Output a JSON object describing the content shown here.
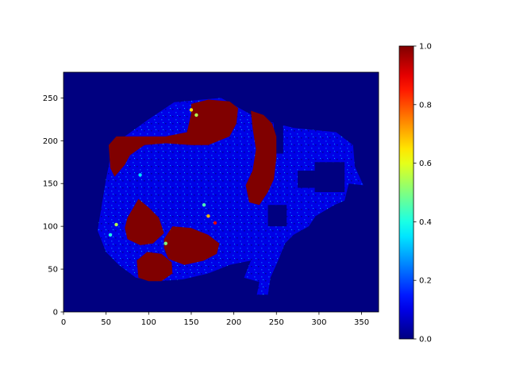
{
  "chart_data": {
    "type": "heatmap",
    "title": "",
    "xlabel": "",
    "ylabel": "",
    "xlim": [
      0,
      370
    ],
    "ylim": [
      0,
      280
    ],
    "x_ticks": [
      "0",
      "50",
      "100",
      "150",
      "200",
      "250",
      "300",
      "350"
    ],
    "y_ticks": [
      "0",
      "50",
      "100",
      "150",
      "200",
      "250"
    ],
    "colorbar": {
      "colormap": "jet",
      "range": [
        0.0,
        1.0
      ],
      "ticks": [
        "0.0",
        "0.2",
        "0.4",
        "0.6",
        "0.8",
        "1.0"
      ]
    },
    "background_value": 0.0,
    "tissue_base_value": 0.1,
    "tissue_region": [
      [
        40,
        95
      ],
      [
        50,
        155
      ],
      [
        58,
        195
      ],
      [
        100,
        225
      ],
      [
        130,
        245
      ],
      [
        185,
        250
      ],
      [
        230,
        225
      ],
      [
        270,
        215
      ],
      [
        320,
        210
      ],
      [
        340,
        195
      ],
      [
        342,
        170
      ],
      [
        352,
        148
      ],
      [
        335,
        150
      ],
      [
        330,
        130
      ],
      [
        318,
        125
      ],
      [
        296,
        112
      ],
      [
        288,
        100
      ],
      [
        270,
        90
      ],
      [
        260,
        80
      ],
      [
        252,
        60
      ],
      [
        243,
        40
      ],
      [
        240,
        20
      ],
      [
        227,
        20
      ],
      [
        230,
        35
      ],
      [
        212,
        40
      ],
      [
        220,
        60
      ],
      [
        195,
        55
      ],
      [
        170,
        45
      ],
      [
        140,
        38
      ],
      [
        110,
        36
      ],
      [
        85,
        40
      ],
      [
        65,
        55
      ],
      [
        50,
        70
      ]
    ],
    "high_regions": [
      {
        "value": 1.0,
        "polygon": [
          [
            53,
            195
          ],
          [
            62,
            205
          ],
          [
            95,
            205
          ],
          [
            120,
            205
          ],
          [
            145,
            210
          ],
          [
            150,
            232
          ],
          [
            150,
            243
          ],
          [
            170,
            248
          ],
          [
            195,
            246
          ],
          [
            205,
            238
          ],
          [
            203,
            220
          ],
          [
            195,
            205
          ],
          [
            170,
            195
          ],
          [
            150,
            195
          ],
          [
            120,
            197
          ],
          [
            95,
            195
          ],
          [
            78,
            183
          ],
          [
            72,
            172
          ],
          [
            60,
            158
          ],
          [
            55,
            168
          ]
        ]
      },
      {
        "value": 1.0,
        "polygon": [
          [
            220,
            235
          ],
          [
            235,
            230
          ],
          [
            245,
            220
          ],
          [
            250,
            205
          ],
          [
            250,
            180
          ],
          [
            247,
            155
          ],
          [
            240,
            140
          ],
          [
            230,
            125
          ],
          [
            218,
            128
          ],
          [
            214,
            148
          ],
          [
            222,
            165
          ],
          [
            226,
            190
          ],
          [
            222,
            215
          ]
        ]
      },
      {
        "value": 1.0,
        "polygon": [
          [
            75,
            110
          ],
          [
            88,
            132
          ],
          [
            100,
            122
          ],
          [
            112,
            110
          ],
          [
            118,
            92
          ],
          [
            105,
            80
          ],
          [
            90,
            78
          ],
          [
            75,
            85
          ],
          [
            72,
            98
          ]
        ]
      },
      {
        "value": 1.0,
        "polygon": [
          [
            118,
            85
          ],
          [
            128,
            100
          ],
          [
            150,
            98
          ],
          [
            170,
            90
          ],
          [
            183,
            80
          ],
          [
            180,
            68
          ],
          [
            165,
            60
          ],
          [
            142,
            55
          ],
          [
            123,
            62
          ],
          [
            118,
            75
          ]
        ]
      },
      {
        "value": 1.0,
        "polygon": [
          [
            88,
            40
          ],
          [
            86,
            60
          ],
          [
            98,
            70
          ],
          [
            115,
            68
          ],
          [
            127,
            58
          ],
          [
            128,
            45
          ],
          [
            115,
            36
          ],
          [
            100,
            36
          ]
        ]
      }
    ],
    "masked_blocks": [
      {
        "x": [
          275,
          295
        ],
        "y": [
          145,
          165
        ]
      },
      {
        "x": [
          295,
          330
        ],
        "y": [
          140,
          175
        ]
      },
      {
        "x": [
          247,
          258
        ],
        "y": [
          185,
          245
        ]
      },
      {
        "x": [
          240,
          262
        ],
        "y": [
          100,
          125
        ]
      }
    ],
    "hotspots": [
      {
        "x": 150,
        "y": 236,
        "value": 0.65
      },
      {
        "x": 156,
        "y": 230,
        "value": 0.55
      },
      {
        "x": 170,
        "y": 112,
        "value": 0.7
      },
      {
        "x": 178,
        "y": 104,
        "value": 0.9
      },
      {
        "x": 165,
        "y": 125,
        "value": 0.45
      },
      {
        "x": 90,
        "y": 160,
        "value": 0.35
      },
      {
        "x": 120,
        "y": 80,
        "value": 0.5
      },
      {
        "x": 62,
        "y": 102,
        "value": 0.55
      },
      {
        "x": 55,
        "y": 90,
        "value": 0.4
      }
    ]
  }
}
